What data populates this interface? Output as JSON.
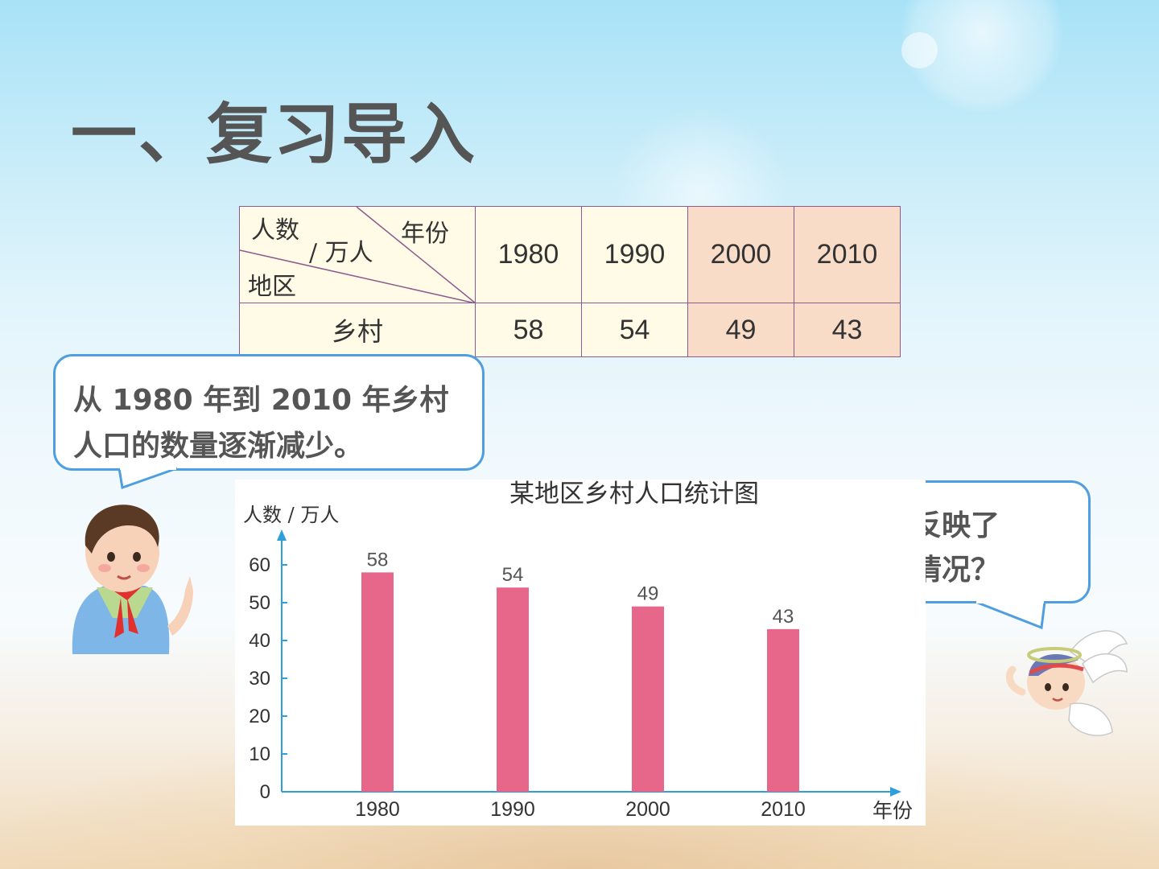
{
  "slide": {
    "title": "一、复习导入"
  },
  "table": {
    "header_top_left": "人数",
    "header_unit": "/ 万人",
    "header_top_right": "年份",
    "header_bottom_left": "地区",
    "years": [
      "1980",
      "1990",
      "2000",
      "2010"
    ],
    "row_label": "乡村",
    "values": [
      "58",
      "54",
      "49",
      "43"
    ],
    "colors": {
      "light": "#fffbe6",
      "highlight": "#f8dcc8",
      "border": "#8e5a8e"
    }
  },
  "bubbles": {
    "boy_line1": "从 1980 年到 2010 年乡村",
    "boy_line2": "人口的数量逐渐减少。",
    "angel_line1": "图中反映了",
    "angel_line2": "什么情况？"
  },
  "chart_data": {
    "type": "bar",
    "title": "某地区乡村人口统计图",
    "ylabel": "人数 / 万人",
    "xlabel": "年份",
    "categories": [
      "1980",
      "1990",
      "2000",
      "2010"
    ],
    "values": [
      58,
      54,
      49,
      43
    ],
    "data_labels": [
      "58",
      "54",
      "49",
      "43"
    ],
    "yticks": [
      0,
      10,
      20,
      30,
      40,
      50,
      60
    ],
    "ylim": [
      0,
      60
    ],
    "grid": false,
    "bar_color": "#e6678a",
    "axis_color": "#2f9fdc"
  }
}
